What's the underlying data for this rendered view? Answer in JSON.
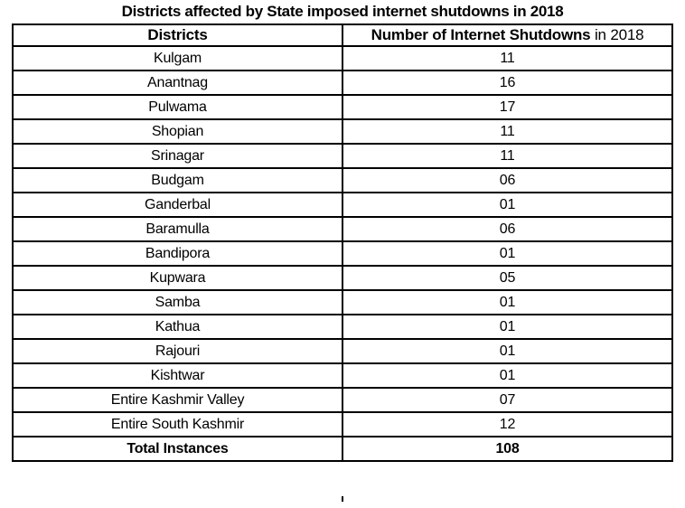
{
  "title": "Districts affected by State imposed internet shutdowns in 2018",
  "table": {
    "header": {
      "districts": "Districts",
      "count_bold": "Number of Internet Shutdowns",
      "count_regular": " in 2018"
    },
    "rows": [
      {
        "district": "Kulgam",
        "count": "11"
      },
      {
        "district": "Anantnag",
        "count": "16"
      },
      {
        "district": "Pulwama",
        "count": "17"
      },
      {
        "district": "Shopian",
        "count": "11"
      },
      {
        "district": "Srinagar",
        "count": "11"
      },
      {
        "district": "Budgam",
        "count": "06"
      },
      {
        "district": "Ganderbal",
        "count": "01"
      },
      {
        "district": "Baramulla",
        "count": "06"
      },
      {
        "district": "Bandipora",
        "count": "01"
      },
      {
        "district": "Kupwara",
        "count": "05"
      },
      {
        "district": "Samba",
        "count": "01"
      },
      {
        "district": "Kathua",
        "count": "01"
      },
      {
        "district": "Rajouri",
        "count": "01"
      },
      {
        "district": "Kishtwar",
        "count": "01"
      },
      {
        "district": "Entire Kashmir Valley",
        "count": "07"
      },
      {
        "district": "Entire South Kashmir",
        "count": "12"
      }
    ],
    "total": {
      "label": "Total Instances",
      "value": "108"
    }
  },
  "colors": {
    "background": "#ffffff",
    "border": "#000000",
    "text": "#000000"
  }
}
